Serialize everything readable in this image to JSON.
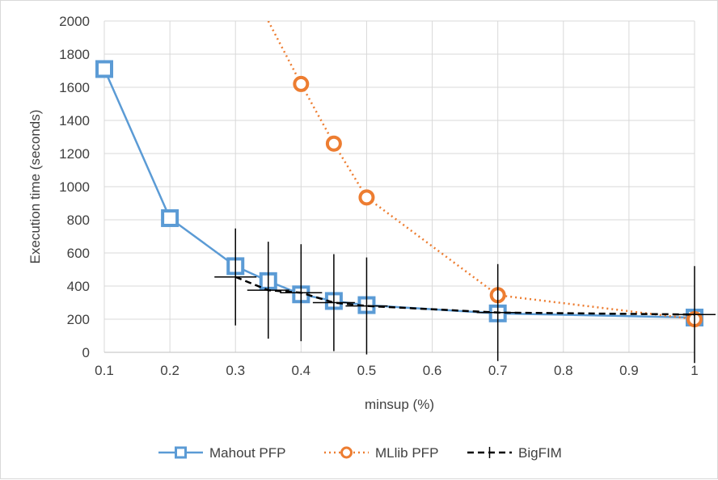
{
  "chart_data": {
    "type": "line",
    "title": "",
    "xlabel": "minsup (%)",
    "ylabel": "Execution time (seconds)",
    "xlim": [
      0.1,
      1
    ],
    "ylim": [
      0,
      2000
    ],
    "x_ticks": [
      "0.1",
      "0.2",
      "0.3",
      "0.4",
      "0.5",
      "0.6",
      "0.7",
      "0.8",
      "0.9",
      "1"
    ],
    "y_ticks": [
      "0",
      "200",
      "400",
      "600",
      "800",
      "1000",
      "1200",
      "1400",
      "1600",
      "1800",
      "2000"
    ],
    "grid": true,
    "legend_position": "bottom",
    "series": [
      {
        "name": "Mahout PFP",
        "color": "#5b9bd5",
        "marker": "square",
        "line_style": "solid",
        "x": [
          0.1,
          0.2,
          0.3,
          0.35,
          0.4,
          0.45,
          0.5,
          0.7,
          1
        ],
        "y": [
          1710,
          810,
          520,
          430,
          350,
          310,
          285,
          235,
          210
        ]
      },
      {
        "name": "MLlib PFP",
        "color": "#ed7d31",
        "marker": "circle",
        "line_style": "dotted",
        "x": [
          0.35,
          0.4,
          0.45,
          0.5,
          0.7,
          1
        ],
        "y": [
          2000,
          1620,
          1260,
          935,
          345,
          200
        ]
      },
      {
        "name": "BigFIM",
        "color": "#000000",
        "marker": "plus",
        "line_style": "dashed",
        "x": [
          0.3,
          0.35,
          0.4,
          0.45,
          0.5,
          0.7,
          1
        ],
        "y": [
          455,
          375,
          360,
          300,
          280,
          240,
          228
        ]
      }
    ]
  }
}
